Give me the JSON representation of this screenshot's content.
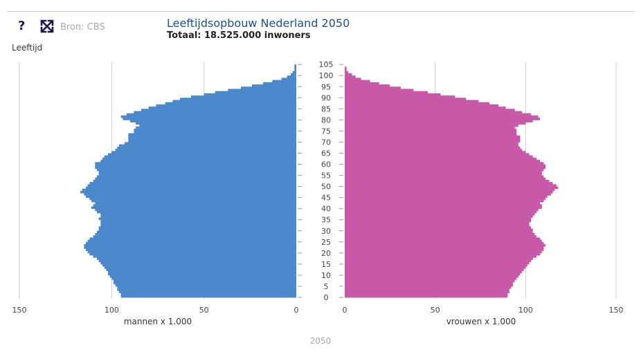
{
  "header": {
    "help_label": "?",
    "source_label": "Bron: CBS",
    "title": "Leeftijdsopbouw Nederland 2050",
    "subtitle": "Totaal: 18.525.000 inwoners",
    "y_axis_label": "Leeftijd",
    "year_label": "2050"
  },
  "colors": {
    "men": "#4c88cc",
    "women": "#c859a8",
    "grid": "#cccccc"
  },
  "chart_data": {
    "type": "bar",
    "subtype": "population-pyramid",
    "title": "Leeftijdsopbouw Nederland 2050",
    "subtitle": "Totaal: 18.525.000 inwoners",
    "ylabel": "Leeftijd",
    "age_ticks": [
      0,
      5,
      10,
      15,
      20,
      25,
      30,
      35,
      40,
      45,
      50,
      55,
      60,
      65,
      70,
      75,
      80,
      85,
      90,
      95,
      100,
      105
    ],
    "ages": [
      0,
      105
    ],
    "x_ticks": [
      0,
      50,
      100,
      150
    ],
    "xlim": [
      0,
      150
    ],
    "grid": true,
    "series": [
      {
        "name": "mannen x 1.000",
        "side": "left",
        "values": [
          95,
          95,
          96,
          97,
          97,
          98,
          99,
          99,
          100,
          101,
          102,
          102,
          103,
          104,
          105,
          106,
          107,
          108,
          110,
          112,
          113,
          114,
          115,
          115,
          114,
          113,
          112,
          110,
          109,
          108,
          107,
          107,
          106,
          106,
          106,
          107,
          106,
          106,
          108,
          109,
          111,
          110,
          109,
          111,
          112,
          114,
          115,
          117,
          116,
          114,
          113,
          112,
          110,
          109,
          108,
          107,
          107,
          108,
          109,
          109,
          109,
          106,
          105,
          104,
          102,
          100,
          98,
          97,
          96,
          93,
          91,
          91,
          91,
          91,
          88,
          88,
          87,
          85,
          87,
          90,
          94,
          95,
          92,
          88,
          84,
          80,
          76,
          71,
          67,
          63,
          57,
          50,
          44,
          37,
          30,
          24,
          18,
          13,
          8,
          5,
          3,
          2,
          1,
          1,
          1,
          0
        ]
      },
      {
        "name": "vrouwen x 1.000",
        "side": "right",
        "values": [
          90,
          90,
          91,
          91,
          92,
          93,
          93,
          94,
          95,
          96,
          97,
          98,
          99,
          100,
          101,
          102,
          103,
          104,
          106,
          108,
          109,
          110,
          110,
          111,
          110,
          109,
          108,
          106,
          105,
          104,
          104,
          103,
          102,
          102,
          103,
          103,
          104,
          105,
          106,
          107,
          109,
          109,
          108,
          110,
          111,
          112,
          114,
          115,
          116,
          118,
          117,
          115,
          113,
          111,
          110,
          109,
          109,
          110,
          111,
          111,
          110,
          108,
          106,
          104,
          102,
          100,
          98,
          97,
          96,
          96,
          97,
          97,
          97,
          95,
          95,
          95,
          94,
          96,
          100,
          104,
          108,
          107,
          103,
          98,
          94,
          89,
          85,
          80,
          74,
          67,
          61,
          53,
          46,
          38,
          31,
          25,
          19,
          14,
          9,
          6,
          4,
          2,
          1,
          1,
          0,
          0
        ]
      }
    ]
  }
}
